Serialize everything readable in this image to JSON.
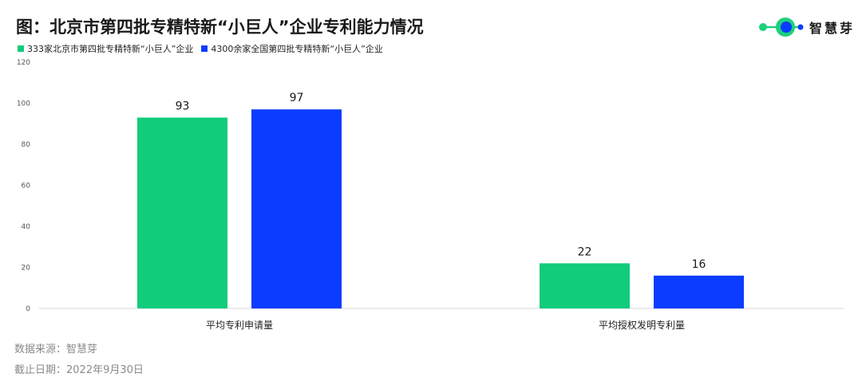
{
  "title": "图：北京市第四批专精特新“小巨人”企业专利能力情况",
  "brand": {
    "name": "智慧芽",
    "primary_color": "#1dd07c",
    "secondary_color": "#0a3cff"
  },
  "footer": {
    "source": "数据来源：智慧芽",
    "cutoff": "截止日期：2022年9月30日"
  },
  "chart_data": {
    "type": "bar",
    "categories": [
      "平均专利申请量",
      "平均授权发明专利量"
    ],
    "series": [
      {
        "name": "333家北京市第四批专精特新“小巨人”企业",
        "values": [
          93,
          22
        ],
        "color": "#10cc7b"
      },
      {
        "name": "4300余家全国第四批专精特新“小巨人”企业",
        "values": [
          97,
          16
        ],
        "color": "#0b3cff"
      }
    ],
    "ylim": [
      0,
      120
    ],
    "yticks": [
      0,
      20,
      40,
      60,
      80,
      100,
      120
    ],
    "grid": false,
    "legend_position": "top-left",
    "data_labels": true
  }
}
